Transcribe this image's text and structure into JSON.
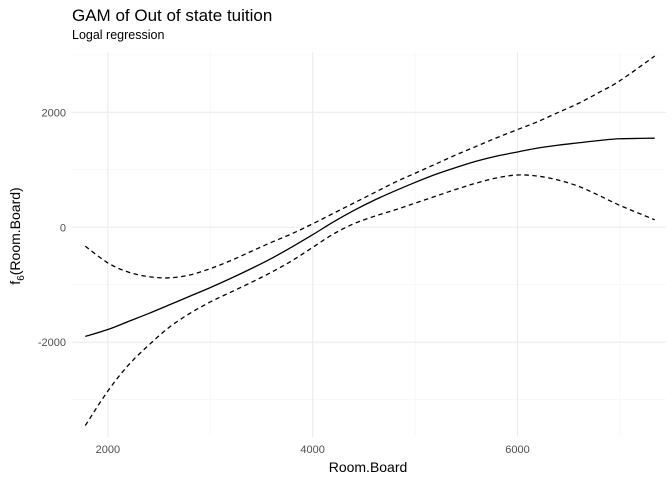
{
  "chart_data": {
    "type": "line",
    "title": "GAM of Out of state tuition",
    "subtitle": "Logal regression",
    "xlabel": "Room.Board",
    "ylabel_main": "f",
    "ylabel_sub": "6",
    "ylabel_arg": "(Room.Board)",
    "xlim": [
      1650,
      7450
    ],
    "ylim": [
      -3650,
      3050
    ],
    "x_ticks": [
      2000,
      4000,
      6000
    ],
    "x_tick_labels": [
      "2000",
      "4000",
      "6000"
    ],
    "y_ticks": [
      -2000,
      0,
      2000
    ],
    "y_tick_labels": [
      "-2000",
      "0",
      "2000"
    ],
    "grid": true,
    "x": [
      1780,
      2000,
      2200,
      2400,
      2600,
      2800,
      3000,
      3200,
      3400,
      3600,
      3800,
      4000,
      4200,
      4400,
      4600,
      4800,
      5000,
      5200,
      5400,
      5600,
      5800,
      6000,
      6200,
      6400,
      6600,
      6800,
      7000,
      7340
    ],
    "series": [
      {
        "role": "estimate",
        "line_style": "solid",
        "values": [
          -1900,
          -1780,
          -1640,
          -1500,
          -1350,
          -1200,
          -1050,
          -890,
          -720,
          -540,
          -340,
          -130,
          90,
          290,
          470,
          630,
          780,
          920,
          1040,
          1150,
          1240,
          1310,
          1380,
          1430,
          1470,
          1510,
          1540,
          1550
        ]
      },
      {
        "role": "upper-band",
        "line_style": "dashed",
        "values": [
          -330,
          -620,
          -780,
          -860,
          -880,
          -830,
          -720,
          -580,
          -420,
          -260,
          -110,
          60,
          240,
          420,
          600,
          780,
          940,
          1100,
          1260,
          1410,
          1560,
          1700,
          1840,
          2000,
          2160,
          2350,
          2550,
          2980
        ]
      },
      {
        "role": "lower-band",
        "line_style": "dashed",
        "values": [
          -3450,
          -2850,
          -2400,
          -2050,
          -1740,
          -1500,
          -1300,
          -1130,
          -960,
          -780,
          -580,
          -350,
          -120,
          60,
          190,
          300,
          420,
          540,
          660,
          770,
          860,
          910,
          890,
          820,
          710,
          550,
          380,
          130
        ]
      }
    ]
  }
}
